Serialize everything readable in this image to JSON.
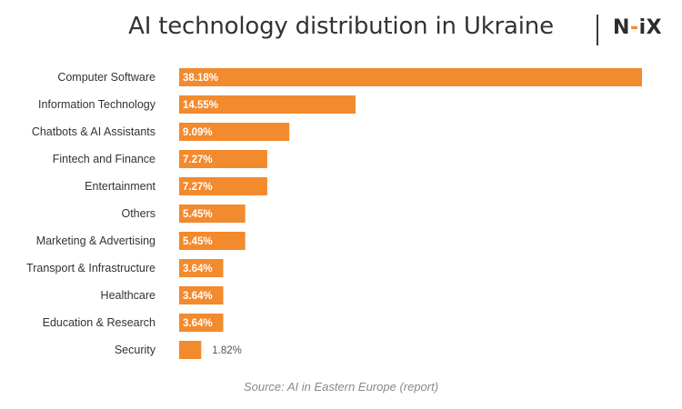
{
  "header": {
    "title": "AI technology distribution in Ukraine",
    "logo_text": "N-iX",
    "logo_parts": [
      "N",
      "-",
      "iX"
    ]
  },
  "footer": {
    "source": "Source: AI in Eastern Europe (report)"
  },
  "colors": {
    "bar": "#f28a2e",
    "label_text": "#333333",
    "value_inside": "#ffffff",
    "value_outside": "#555555"
  },
  "chart_data": {
    "type": "bar",
    "orientation": "horizontal",
    "title": "AI technology distribution in Ukraine",
    "categories": [
      "Computer Software",
      "Information Technology",
      "Chatbots & AI Assistants",
      "Fintech and Finance",
      "Entertainment",
      "Others",
      "Marketing & Advertising",
      "Transport & Infrastructure",
      "Healthcare",
      "Education & Research",
      "Security"
    ],
    "values": [
      38.18,
      14.55,
      9.09,
      7.27,
      7.27,
      5.45,
      5.45,
      3.64,
      3.64,
      3.64,
      1.82
    ],
    "value_labels": [
      "38.18%",
      "14.55%",
      "9.09%",
      "7.27%",
      "7.27%",
      "5.45%",
      "5.45%",
      "3.64%",
      "3.64%",
      "3.64%",
      "1.82%"
    ],
    "xlim": [
      0,
      38.18
    ],
    "grid": false,
    "legend": "none"
  }
}
